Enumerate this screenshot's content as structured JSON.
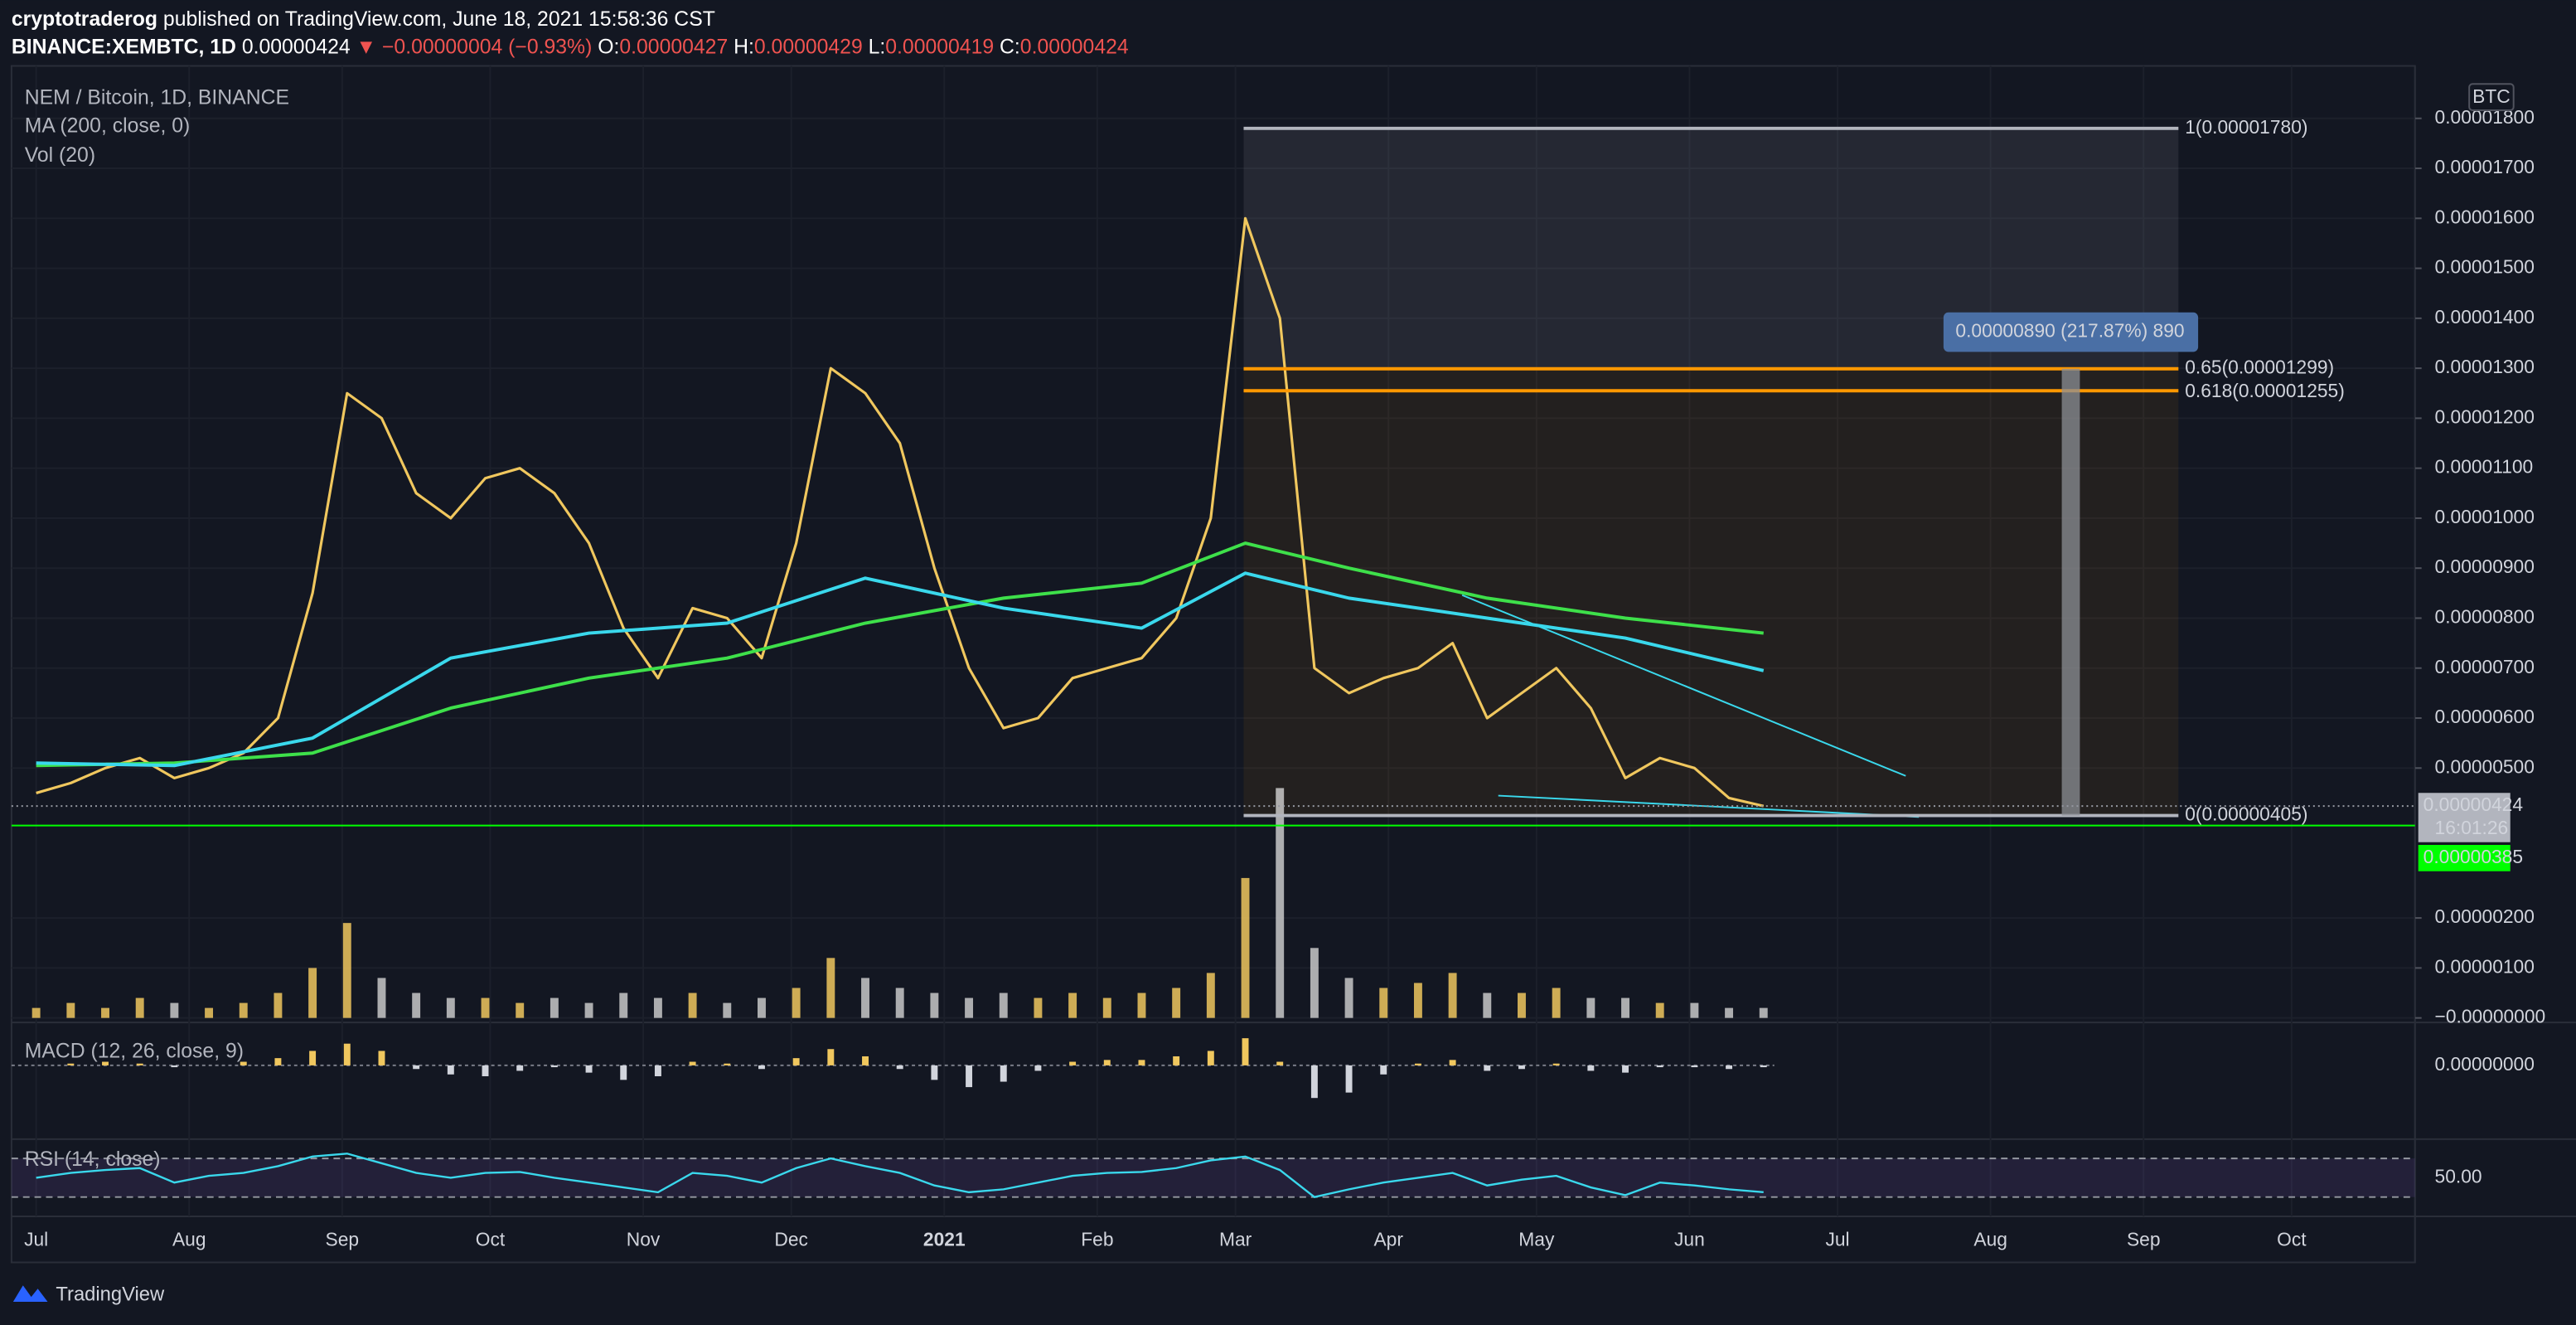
{
  "header": {
    "author": "cryptotraderog",
    "published": "published on TradingView.com, June 18, 2021 15:58:36 CST",
    "symbol": "BINANCE:XEMBTC, 1D",
    "last": "0.00000424",
    "change": "▼ −0.00000004 (−0.93%)",
    "ohlc": [
      {
        "label": "O:",
        "value": "0.00000427"
      },
      {
        "label": "H:",
        "value": "0.00000429"
      },
      {
        "label": "L:",
        "value": "0.00000419"
      },
      {
        "label": "C:",
        "value": "0.00000424"
      }
    ]
  },
  "legend": {
    "pair": "NEM / Bitcoin, 1D, BINANCE",
    "ma": "MA (200, close, 0)",
    "vol": "Vol (20)",
    "macd": "MACD (12, 26, close, 9)",
    "rsi": "RSI (14, close)",
    "currency": "BTC"
  },
  "chart_data": {
    "type": "line",
    "xlim": [
      -5,
      482
    ],
    "ylim": [
      -9e-08,
      1.905e-05
    ],
    "xticks": [
      {
        "value": 0,
        "label": "Jul"
      },
      {
        "value": 31,
        "label": "Aug"
      },
      {
        "value": 62,
        "label": "Sep"
      },
      {
        "value": 92,
        "label": "Oct"
      },
      {
        "value": 123,
        "label": "Nov"
      },
      {
        "value": 153,
        "label": "Dec"
      },
      {
        "value": 184,
        "label": "2021"
      },
      {
        "value": 215,
        "label": "Feb"
      },
      {
        "value": 243,
        "label": "Mar"
      },
      {
        "value": 274,
        "label": "Apr"
      },
      {
        "value": 304,
        "label": "May"
      },
      {
        "value": 335,
        "label": "Jun"
      },
      {
        "value": 365,
        "label": "Jul"
      },
      {
        "value": 396,
        "label": "Aug"
      },
      {
        "value": 427,
        "label": "Sep"
      },
      {
        "value": 457,
        "label": "Oct"
      }
    ],
    "yticks": [
      {
        "value": 1.8e-05,
        "label": "0.00001800"
      },
      {
        "value": 1.7e-05,
        "label": "0.00001700"
      },
      {
        "value": 1.6e-05,
        "label": "0.00001600"
      },
      {
        "value": 1.5e-05,
        "label": "0.00001500"
      },
      {
        "value": 1.4e-05,
        "label": "0.00001400"
      },
      {
        "value": 1.3e-05,
        "label": "0.00001300"
      },
      {
        "value": 1.2e-05,
        "label": "0.00001200"
      },
      {
        "value": 1.1e-05,
        "label": "0.00001100"
      },
      {
        "value": 1e-05,
        "label": "0.00001000"
      },
      {
        "value": 9e-06,
        "label": "0.00000900"
      },
      {
        "value": 8e-06,
        "label": "0.00000800"
      },
      {
        "value": 7e-06,
        "label": "0.00000700"
      },
      {
        "value": 6e-06,
        "label": "0.00000600"
      },
      {
        "value": 5e-06,
        "label": "0.00000500"
      },
      {
        "value": 2e-06,
        "label": "0.00000200"
      },
      {
        "value": 1e-06,
        "label": "0.00000100"
      },
      {
        "value": 0,
        "label": "−0.00000000"
      }
    ],
    "grid": true,
    "series": [
      {
        "name": "NEM / Bitcoin",
        "color": "#f0c75e",
        "x": [
          0,
          7,
          14,
          21,
          28,
          35,
          42,
          49,
          56,
          63,
          70,
          77,
          84,
          91,
          98,
          105,
          112,
          119,
          126,
          133,
          140,
          147,
          154,
          161,
          168,
          175,
          182,
          189,
          196,
          203,
          210,
          217,
          224,
          231,
          238,
          245,
          252,
          259,
          266,
          273,
          280,
          287,
          294,
          301,
          308,
          315,
          322,
          329,
          336,
          343,
          350
        ],
        "values": [
          4.5e-06,
          4.7e-06,
          5e-06,
          5.2e-06,
          4.8e-06,
          5e-06,
          5.3e-06,
          6e-06,
          8.5e-06,
          1.25e-05,
          1.2e-05,
          1.05e-05,
          1e-05,
          1.08e-05,
          1.1e-05,
          1.05e-05,
          9.5e-06,
          7.8e-06,
          6.8e-06,
          8.2e-06,
          8e-06,
          7.2e-06,
          9.5e-06,
          1.3e-05,
          1.25e-05,
          1.15e-05,
          9e-06,
          7e-06,
          5.8e-06,
          6e-06,
          6.8e-06,
          7e-06,
          7.2e-06,
          8e-06,
          1e-05,
          1.6e-05,
          1.4e-05,
          7e-06,
          6.5e-06,
          6.8e-06,
          7e-06,
          7.5e-06,
          6e-06,
          6.5e-06,
          7e-06,
          6.2e-06,
          4.8e-06,
          5.2e-06,
          5e-06,
          4.4e-06,
          4.24e-06
        ]
      },
      {
        "name": "MA (200, close, 0)",
        "color": "#3ee04a",
        "x": [
          0,
          28,
          56,
          84,
          112,
          140,
          168,
          196,
          224,
          245,
          266,
          294,
          322,
          350
        ],
        "values": [
          5.05e-06,
          5.1e-06,
          5.3e-06,
          6.2e-06,
          6.8e-06,
          7.2e-06,
          7.9e-06,
          8.4e-06,
          8.7e-06,
          9.5e-06,
          9e-06,
          8.4e-06,
          8e-06,
          7.7e-06
        ]
      },
      {
        "color": "#3ad8ec",
        "x": [
          0,
          28,
          56,
          84,
          112,
          140,
          168,
          196,
          224,
          245,
          266,
          294,
          322,
          350
        ],
        "values": [
          5.1e-06,
          5.05e-06,
          5.6e-06,
          7.2e-06,
          7.7e-06,
          7.9e-06,
          8.8e-06,
          8.2e-06,
          7.8e-06,
          8.9e-06,
          8.4e-06,
          8e-06,
          7.6e-06,
          6.95e-06
        ]
      }
    ],
    "volume": {
      "values": [
        2e-07,
        3e-07,
        2e-07,
        4e-07,
        3e-07,
        2e-07,
        3e-07,
        5e-07,
        1e-06,
        1.9e-06,
        8e-07,
        5e-07,
        4e-07,
        4e-07,
        3e-07,
        4e-07,
        3e-07,
        5e-07,
        4e-07,
        5e-07,
        3e-07,
        4e-07,
        6e-07,
        1.2e-06,
        8e-07,
        6e-07,
        5e-07,
        4e-07,
        5e-07,
        4e-07,
        5e-07,
        4e-07,
        5e-07,
        6e-07,
        9e-07,
        2.8e-06,
        4.6e-06,
        1.4e-06,
        8e-07,
        6e-07,
        7e-07,
        9e-07,
        5e-07,
        5e-07,
        6e-07,
        4e-07,
        4e-07,
        3e-07,
        3e-07,
        2e-07,
        2e-07
      ]
    },
    "fib": [
      {
        "label": "1(0.00001780)",
        "value": 1.78e-05,
        "color": "#b2b5be"
      },
      {
        "label": "0.65(0.00001299)",
        "value": 1.299e-05,
        "color": "#ff9800"
      },
      {
        "label": "0.618(0.00001255)",
        "value": 1.255e-05,
        "color": "#ff9800"
      },
      {
        "label": "0(0.00000405)",
        "value": 4.05e-06,
        "color": "#b2b5be"
      }
    ],
    "measure": "0.00000890 (217.87%) 890",
    "support": {
      "value": 3.85e-06,
      "label": "0.00000385",
      "color": "#00ff00"
    },
    "last_price": {
      "value": 4.24e-06,
      "label": "0.00000424",
      "countdown": "16:01:26"
    },
    "macd": {
      "ylim": [
        -3.8e-07,
        2.1e-07
      ],
      "yticks": [
        {
          "value": 0,
          "label": "0.00000000"
        }
      ],
      "values": [
        0,
        1e-08,
        2e-08,
        1e-08,
        -1e-08,
        0,
        2e-08,
        4e-08,
        8e-08,
        1.2e-07,
        8e-08,
        -2e-08,
        -5e-08,
        -6e-08,
        -3e-08,
        -1e-08,
        -4e-08,
        -8e-08,
        -6e-08,
        2e-08,
        1e-08,
        -2e-08,
        4e-08,
        9e-08,
        5e-08,
        -2e-08,
        -8e-08,
        -1.2e-07,
        -9e-08,
        -3e-08,
        2e-08,
        3e-08,
        3e-08,
        5e-08,
        8e-08,
        1.5e-07,
        2e-08,
        -1.8e-07,
        -1.5e-07,
        -5e-08,
        1e-08,
        3e-08,
        -3e-08,
        -2e-08,
        1e-08,
        -3e-08,
        -4e-08,
        -1e-08,
        -1e-08,
        -2e-08,
        -1e-08
      ]
    },
    "rsi": {
      "ylim": [
        10,
        90
      ],
      "yticks": [
        {
          "value": 50,
          "label": "50.00"
        }
      ],
      "bands": [
        70,
        30
      ],
      "color": "#3ad8ec",
      "values": [
        50,
        55,
        58,
        60,
        45,
        52,
        55,
        62,
        72,
        75,
        65,
        55,
        50,
        55,
        56,
        50,
        45,
        40,
        35,
        55,
        52,
        45,
        60,
        70,
        62,
        55,
        42,
        35,
        38,
        45,
        52,
        55,
        56,
        60,
        68,
        72,
        58,
        30,
        38,
        45,
        50,
        55,
        42,
        48,
        52,
        40,
        32,
        45,
        42,
        38,
        35
      ]
    }
  },
  "footer": {
    "brand": "TradingView"
  }
}
